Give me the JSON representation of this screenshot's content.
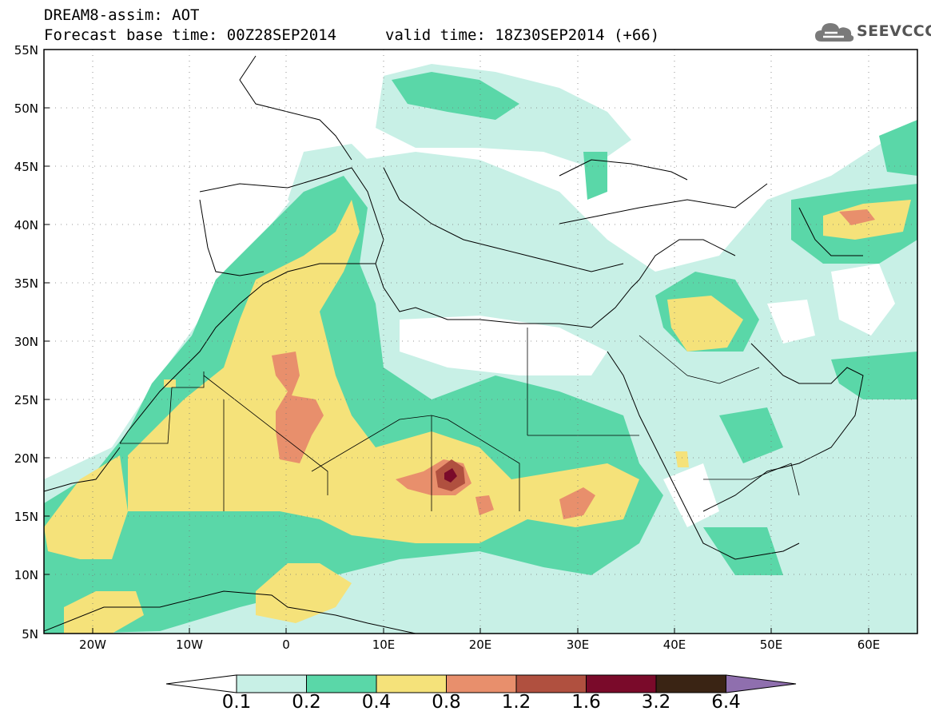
{
  "header": {
    "title": "DREAM8-assim: AOT",
    "base_time": "Forecast base time: 00Z28SEP2014",
    "valid_time": "valid time: 18Z30SEP2014 (+66)"
  },
  "logo": {
    "text": "SEEVCCC",
    "icon": "cloud-icon"
  },
  "map": {
    "lat_labels": [
      "55N",
      "50N",
      "45N",
      "40N",
      "35N",
      "30N",
      "25N",
      "20N",
      "15N",
      "10N",
      "5N"
    ],
    "lon_labels": [
      "20W",
      "10W",
      "0",
      "10E",
      "20E",
      "30E",
      "40E",
      "50E",
      "60E"
    ]
  },
  "colorbar": {
    "labels": [
      "0.1",
      "0.2",
      "0.4",
      "0.8",
      "1.2",
      "1.6",
      "3.2",
      "6.4"
    ],
    "colors": [
      "#ffffff",
      "#c8f0e6",
      "#5ad7a8",
      "#f5e27a",
      "#e88f6c",
      "#b0503f",
      "#7a0a2a",
      "#3a2414",
      "#8f6fae"
    ]
  }
}
